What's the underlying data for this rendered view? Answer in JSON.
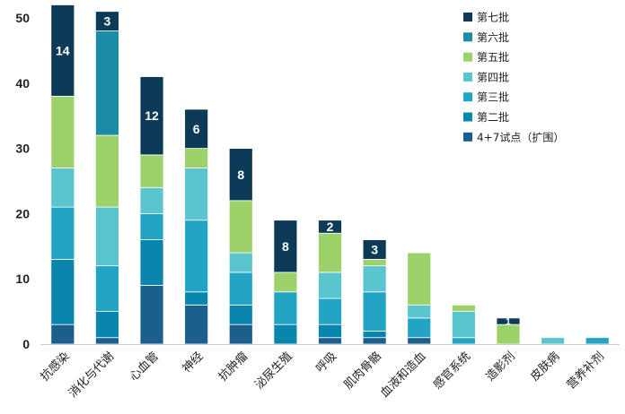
{
  "chart_data": {
    "type": "bar",
    "stacked": true,
    "categories": [
      "抗感染",
      "消化与代谢",
      "心血管",
      "神经",
      "抗肿瘤",
      "泌尿生殖",
      "呼吸",
      "肌肉骨骼",
      "血液和造血",
      "感官系统",
      "造影剂",
      "皮肤病",
      "营养补剂"
    ],
    "series": [
      {
        "name": "4+7试点（扩围）",
        "color": "#1b5f8c",
        "values": [
          3,
          1,
          9,
          6,
          3,
          0,
          1,
          1,
          1,
          0,
          0,
          0,
          0
        ]
      },
      {
        "name": "第二批",
        "color": "#0a86ad",
        "values": [
          10,
          4,
          7,
          2,
          3,
          3,
          2,
          1,
          0,
          0,
          0,
          0,
          0
        ]
      },
      {
        "name": "第三批",
        "color": "#22a5c4",
        "values": [
          8,
          7,
          4,
          11,
          5,
          5,
          4,
          6,
          3,
          1,
          0,
          0,
          1
        ]
      },
      {
        "name": "第四批",
        "color": "#5ac4cf",
        "values": [
          6,
          9,
          4,
          8,
          3,
          0,
          4,
          4,
          2,
          4,
          0,
          1,
          0
        ]
      },
      {
        "name": "第五批",
        "color": "#9dd26a",
        "values": [
          11,
          11,
          5,
          3,
          8,
          3,
          6,
          1,
          8,
          1,
          3,
          0,
          0
        ]
      },
      {
        "name": "第六批",
        "color": "#1b8ca6",
        "values": [
          0,
          16,
          0,
          0,
          0,
          0,
          0,
          0,
          0,
          0,
          0,
          0,
          0
        ]
      },
      {
        "name": "第七批",
        "color": "#0d3b57",
        "values": [
          14,
          3,
          12,
          6,
          8,
          8,
          2,
          3,
          0,
          0,
          1,
          0,
          0
        ]
      }
    ],
    "labeled_series": "第七批",
    "ylim": [
      0,
      50
    ],
    "yticks": [
      0,
      10,
      20,
      30,
      40,
      50
    ],
    "title": "",
    "xlabel": "",
    "ylabel": "",
    "grid": false,
    "legend_position": "top-right"
  }
}
